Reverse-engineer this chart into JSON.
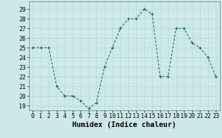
{
  "x": [
    0,
    1,
    2,
    3,
    4,
    5,
    6,
    7,
    8,
    9,
    10,
    11,
    12,
    13,
    14,
    15,
    16,
    17,
    18,
    19,
    20,
    21,
    22,
    23
  ],
  "y": [
    25,
    25,
    25,
    21,
    20,
    20,
    19.5,
    18.7,
    19.3,
    23,
    25,
    27,
    28,
    28,
    29,
    28.5,
    22,
    22,
    27,
    27,
    25.5,
    25,
    24,
    22
  ],
  "xlabel": "Humidex (Indice chaleur)",
  "ylim_min": 18.5,
  "ylim_max": 29.8,
  "xlim_min": -0.5,
  "xlim_max": 23.5,
  "yticks": [
    19,
    20,
    21,
    22,
    23,
    24,
    25,
    26,
    27,
    28,
    29
  ],
  "xticks": [
    0,
    1,
    2,
    3,
    4,
    5,
    6,
    7,
    8,
    9,
    10,
    11,
    12,
    13,
    14,
    15,
    16,
    17,
    18,
    19,
    20,
    21,
    22,
    23
  ],
  "line_color": "#1a6b5a",
  "marker": "+",
  "bg_color": "#cce8e8",
  "grid_color": "#b8d4d4",
  "tick_label_fontsize": 6.0,
  "xlabel_fontsize": 7.5
}
